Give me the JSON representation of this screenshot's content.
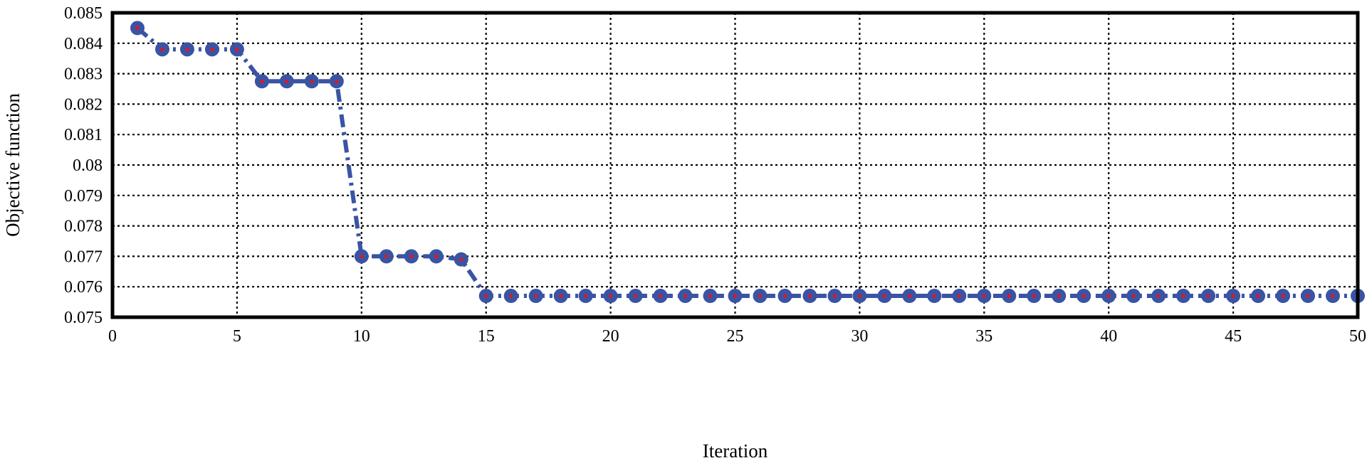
{
  "chart_data": {
    "type": "line",
    "xlabel": "Iteration",
    "ylabel": "Objective function",
    "xlim": [
      0,
      50
    ],
    "ylim": [
      0.075,
      0.085
    ],
    "x_ticks": [
      0,
      5,
      10,
      15,
      20,
      25,
      30,
      35,
      40,
      45,
      50
    ],
    "y_ticks": [
      0.075,
      0.076,
      0.077,
      0.078,
      0.079,
      0.08,
      0.081,
      0.082,
      0.083,
      0.084,
      0.085
    ],
    "x_tick_labels": [
      "0",
      "5",
      "10",
      "15",
      "20",
      "25",
      "30",
      "35",
      "40",
      "45",
      "50"
    ],
    "y_tick_labels": [
      "0.075",
      "0.076",
      "0.077",
      "0.078",
      "0.079",
      "0.08",
      "0.081",
      "0.082",
      "0.083",
      "0.084",
      "0.085"
    ],
    "grid": true,
    "series": [
      {
        "line_color": "#3a54a4",
        "marker_color": "#3a54a4",
        "marker_center_color": "#e8141c",
        "line_style": "dash-dot",
        "marker": "circle",
        "x": [
          1,
          2,
          3,
          4,
          5,
          6,
          7,
          8,
          9,
          10,
          11,
          12,
          13,
          14,
          15,
          16,
          17,
          18,
          19,
          20,
          21,
          22,
          23,
          24,
          25,
          26,
          27,
          28,
          29,
          30,
          31,
          32,
          33,
          34,
          35,
          36,
          37,
          38,
          39,
          40,
          41,
          42,
          43,
          44,
          45,
          46,
          47,
          48,
          49,
          50
        ],
        "y": [
          0.0845,
          0.0838,
          0.0838,
          0.0838,
          0.0838,
          0.08275,
          0.08275,
          0.08275,
          0.08275,
          0.077,
          0.077,
          0.077,
          0.077,
          0.0769,
          0.0757,
          0.0757,
          0.0757,
          0.0757,
          0.0757,
          0.0757,
          0.0757,
          0.0757,
          0.0757,
          0.0757,
          0.0757,
          0.0757,
          0.0757,
          0.0757,
          0.0757,
          0.0757,
          0.0757,
          0.0757,
          0.0757,
          0.0757,
          0.0757,
          0.0757,
          0.0757,
          0.0757,
          0.0757,
          0.0757,
          0.0757,
          0.0757,
          0.0757,
          0.0757,
          0.0757,
          0.0757,
          0.0757,
          0.0757,
          0.0757,
          0.0757
        ]
      }
    ]
  }
}
